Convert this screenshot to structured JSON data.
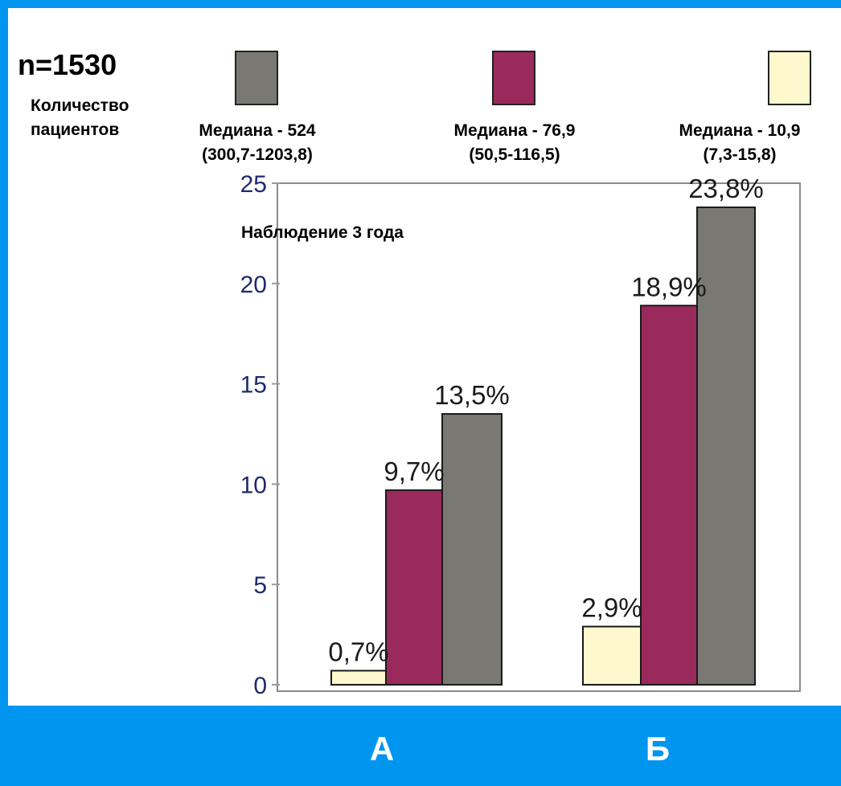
{
  "header": {
    "n_label": "n=1530",
    "count_label": "Количество пациентов"
  },
  "legend": [
    {
      "median": "Медиана - 524",
      "range": "(300,7-1203,8)",
      "color": "#7a7873"
    },
    {
      "median": "Медиана - 76,9",
      "range": "(50,5-116,5)",
      "color": "#9a2a5b"
    },
    {
      "median": "Медиана - 10,9",
      "range": "(7,3-15,8)",
      "color": "#fdf8cd"
    }
  ],
  "chart_data": {
    "type": "bar",
    "title": "",
    "annotation": "Наблюдение 3 года",
    "categories": [
      "А",
      "Б"
    ],
    "series": [
      {
        "color": "#fdf8cd",
        "values": [
          0.7,
          2.9
        ],
        "labels": [
          "0,7%",
          "2,9%"
        ]
      },
      {
        "color": "#9a2a5b",
        "values": [
          9.7,
          18.9
        ],
        "labels": [
          "9,7%",
          "18,9%"
        ]
      },
      {
        "color": "#7a7873",
        "values": [
          13.5,
          23.8
        ],
        "labels": [
          "13,5%",
          "23,8%"
        ]
      }
    ],
    "ylim": [
      0,
      25
    ],
    "yticks": [
      "0",
      "5",
      "10",
      "15",
      "20",
      "25"
    ],
    "grid": false,
    "colors": {
      "axis_tick_text": "#1f2a6e",
      "bar_border": "#1a1a1a",
      "frame": "#8a8a8a"
    }
  },
  "group_labels": [
    "А",
    "Б"
  ]
}
